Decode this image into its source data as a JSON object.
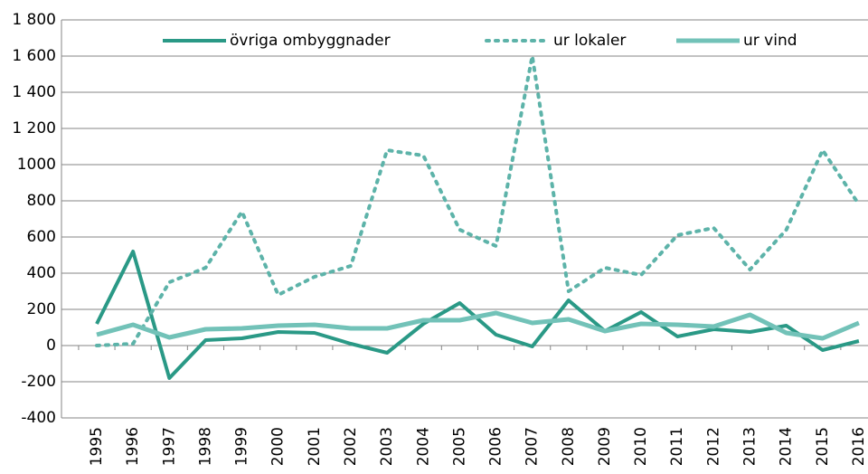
{
  "chart_data": {
    "type": "line",
    "categories": [
      "1995",
      "1996",
      "1997",
      "1998",
      "1999",
      "2000",
      "2001",
      "2002",
      "2003",
      "2004",
      "2005",
      "2006",
      "2007",
      "2008",
      "2009",
      "2010",
      "2011",
      "2012",
      "2013",
      "2014",
      "2015",
      "2016"
    ],
    "series": [
      {
        "name": "övriga ombyggnader",
        "color": "#2a9986",
        "style": "solid",
        "width": 4,
        "values": [
          120,
          520,
          -180,
          30,
          40,
          75,
          70,
          10,
          -40,
          120,
          235,
          60,
          -5,
          250,
          80,
          185,
          50,
          90,
          75,
          110,
          -25,
          25
        ]
      },
      {
        "name": "ur lokaler",
        "color": "#5db3a9",
        "style": "dotted",
        "width": 4,
        "values": [
          0,
          10,
          350,
          430,
          740,
          280,
          380,
          440,
          1080,
          1050,
          640,
          550,
          1600,
          300,
          430,
          390,
          610,
          650,
          420,
          640,
          1080,
          780
        ]
      },
      {
        "name": "ur vind",
        "color": "#72c2b8",
        "style": "solid",
        "width": 5,
        "values": [
          60,
          115,
          45,
          90,
          95,
          110,
          115,
          95,
          95,
          140,
          140,
          180,
          125,
          145,
          80,
          120,
          115,
          105,
          170,
          70,
          40,
          125
        ]
      }
    ],
    "ylim": [
      -400,
      1800
    ],
    "yticks": [
      -400,
      -200,
      0,
      200,
      400,
      600,
      800,
      1000,
      {
        "value": 1200,
        "label": "1 200"
      },
      {
        "value": 1400,
        "label": "1 400"
      },
      {
        "value": 1600,
        "label": "1 600"
      },
      {
        "value": 1800,
        "label": "1 800"
      }
    ],
    "grid": true,
    "legend": "top"
  }
}
